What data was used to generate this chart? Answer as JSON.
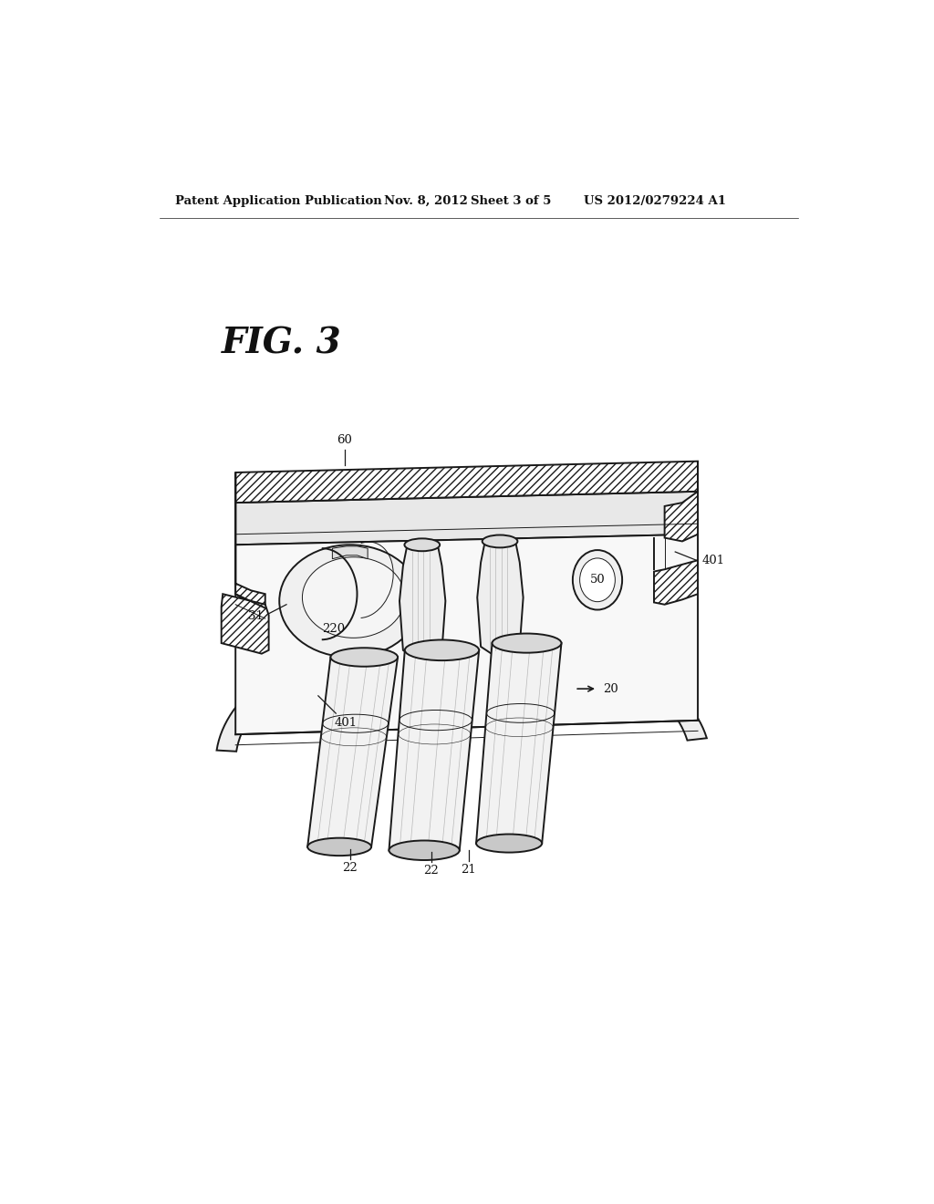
{
  "background_color": "#ffffff",
  "fig_width": 10.24,
  "fig_height": 13.2,
  "header_text": "Patent Application Publication",
  "header_date": "Nov. 8, 2012",
  "header_sheet": "Sheet 3 of 5",
  "header_patent": "US 2012/0279224 A1",
  "fig_label": "FIG. 3",
  "line_color": "#1a1a1a",
  "hatch_color": "#1a1a1a",
  "lw_thick": 2.0,
  "lw_main": 1.4,
  "lw_thin": 0.7,
  "lw_xtra": 0.4
}
